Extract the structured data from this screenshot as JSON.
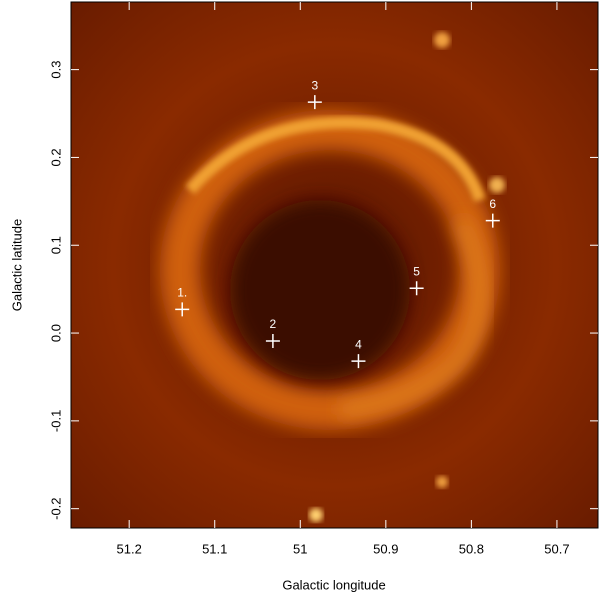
{
  "chart_data": {
    "type": "scatter",
    "xlabel": "Galactic longitude",
    "ylabel": "Galactic latitude",
    "xlim": [
      51.268,
      50.652
    ],
    "ylim": [
      -0.222,
      0.377
    ],
    "xticks": [
      51.2,
      51.1,
      51.0,
      50.9,
      50.8,
      50.7
    ],
    "yticks": [
      -0.2,
      -0.1,
      {
        "value": 0,
        "label": "0.0"
      },
      0.1,
      0.2,
      0.3
    ],
    "color": "#ffffff",
    "labels": [
      "1.",
      "2",
      "3",
      "4",
      "5",
      "6"
    ],
    "x": [
      51.138,
      51.032,
      50.983,
      50.932,
      50.864,
      50.775
    ],
    "y": [
      0.027,
      -0.009,
      0.263,
      -0.032,
      0.051,
      0.128
    ]
  }
}
